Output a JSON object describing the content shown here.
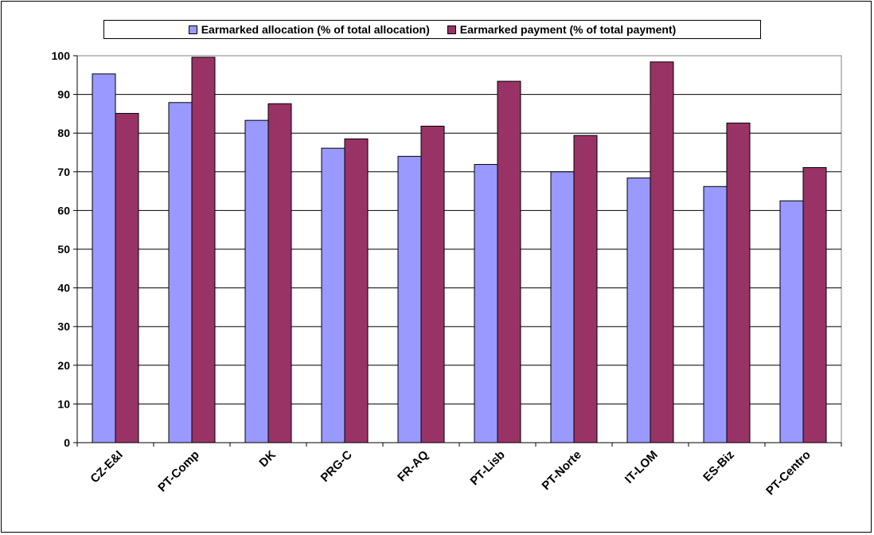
{
  "chart_data": {
    "type": "bar",
    "categories": [
      "CZ-E&I",
      "PT-Comp",
      "DK",
      "PRG-C",
      "FR-AQ",
      "PT-Lisb",
      "PT-Norte",
      "IT-LOM",
      "ES-Biz",
      "PT-Centro"
    ],
    "series": [
      {
        "name": "Earmarked allocation (% of total allocation)",
        "color": "#9999ff",
        "values": [
          95.3,
          87.9,
          83.3,
          76.1,
          74.0,
          71.9,
          70.0,
          68.4,
          66.2,
          62.5
        ]
      },
      {
        "name": "Earmarked payment (% of total payment)",
        "color": "#993366",
        "values": [
          85.1,
          99.6,
          87.6,
          78.5,
          81.8,
          93.4,
          79.4,
          98.4,
          82.6,
          71.1
        ]
      }
    ],
    "yticks": [
      0,
      10,
      20,
      30,
      40,
      50,
      60,
      70,
      80,
      90,
      100
    ],
    "ylim": [
      0,
      100
    ],
    "grid": true,
    "legend_position": "top"
  }
}
